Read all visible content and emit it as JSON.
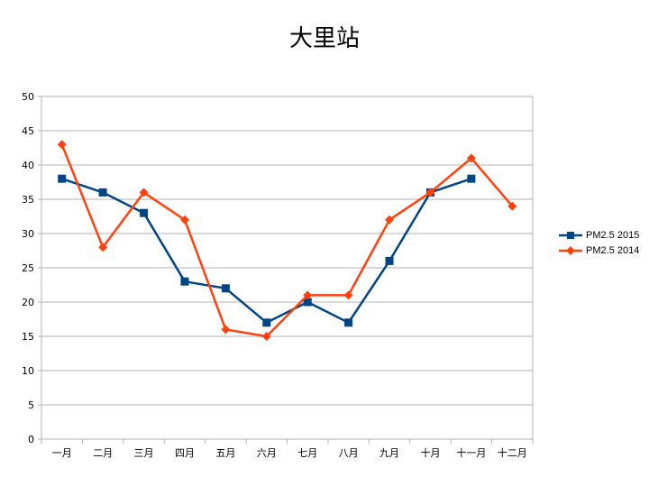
{
  "chart_data": {
    "type": "line",
    "title": "大里站",
    "categories": [
      "一月",
      "二月",
      "三月",
      "四月",
      "五月",
      "六月",
      "七月",
      "八月",
      "九月",
      "十月",
      "十一月",
      "十二月"
    ],
    "ylim": [
      0,
      50
    ],
    "yticks": [
      0,
      5,
      10,
      15,
      20,
      25,
      30,
      35,
      40,
      45,
      50
    ],
    "grid": true,
    "legend_position": "right",
    "series": [
      {
        "name": "PM2.5 2015",
        "color": "#004586",
        "marker": "square",
        "values": [
          38,
          36,
          33,
          23,
          22,
          17,
          20,
          17,
          26,
          36,
          38,
          null
        ]
      },
      {
        "name": "PM2.5 2014",
        "color": "#ff420e",
        "marker": "diamond",
        "values": [
          43,
          28,
          36,
          32,
          16,
          15,
          21,
          21,
          32,
          36,
          41,
          34
        ]
      }
    ]
  }
}
